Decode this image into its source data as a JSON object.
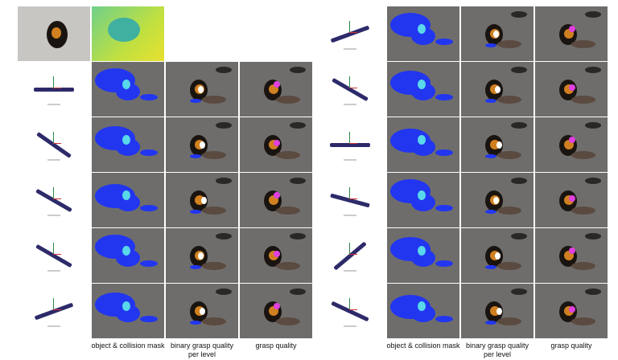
{
  "labels": {
    "mask": "object & collision mask",
    "binary": "binary grasp quality per level",
    "quality": "grasp quality"
  },
  "colors": {
    "mask_blue": "#2236f0",
    "mask_cyan": "#58d8ea",
    "grasp_magenta": "#e040e0",
    "object_orange": "#d08020",
    "background_gray": "#6f6d6b"
  },
  "left_panel": {
    "gripper_angles_deg": [
      0,
      35,
      30,
      30,
      -20
    ]
  },
  "right_panel": {
    "gripper_angles_deg": [
      -20,
      30,
      0,
      15,
      -40,
      25
    ]
  }
}
